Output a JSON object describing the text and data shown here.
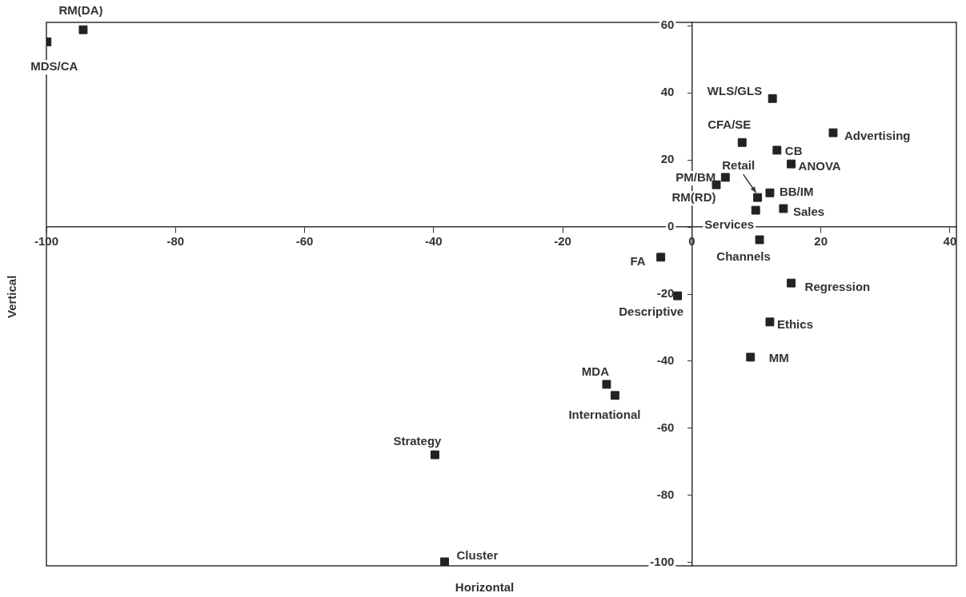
{
  "chart_data": {
    "type": "scatter",
    "xlabel": "Horizontal",
    "ylabel": "Vertical",
    "x": [
      -94.3,
      -99.9,
      12.5,
      21.9,
      7.8,
      13.2,
      15.4,
      5.2,
      3.8,
      10.2,
      12.1,
      9.9,
      14.2,
      10.5,
      -4.8,
      -2.2,
      15.4,
      12.1,
      9.1,
      -13.2,
      -11.9,
      -39.8,
      -38.3
    ],
    "values": [
      58.8,
      55.2,
      38.3,
      28.1,
      25.2,
      22.9,
      18.8,
      14.8,
      12.6,
      8.8,
      10.2,
      5.0,
      5.5,
      -3.8,
      -9.0,
      -20.5,
      -16.7,
      -28.3,
      -38.8,
      -46.9,
      -50.2,
      -67.9,
      -99.8
    ],
    "color": "#222222",
    "marker": "square",
    "xlim": [
      -100,
      41
    ],
    "ylim": [
      -101,
      61
    ],
    "xticks": [
      -100,
      -80,
      -60,
      -40,
      -20,
      0,
      20,
      40
    ],
    "yticks": [
      -100,
      -80,
      -60,
      -40,
      -20,
      0,
      20,
      40,
      60
    ],
    "grid": false,
    "legend": false,
    "annotations": [
      {
        "text": "RM(DA)",
        "x": -94.3,
        "y": 58.8
      },
      {
        "text": "MDS/CA",
        "x": -99.9,
        "y": 55.2
      },
      {
        "text": "WLS/GLS",
        "x": 12.5,
        "y": 38.3
      },
      {
        "text": "Advertising",
        "x": 21.9,
        "y": 28.1
      },
      {
        "text": "CFA/SE",
        "x": 7.8,
        "y": 25.2
      },
      {
        "text": "CB",
        "x": 13.2,
        "y": 22.9
      },
      {
        "text": "ANOVA",
        "x": 15.4,
        "y": 18.8
      },
      {
        "text": "PM/BM",
        "x": 5.2,
        "y": 14.8
      },
      {
        "text": "RM(RD)",
        "x": 3.8,
        "y": 12.6
      },
      {
        "text": "Retail",
        "x": 10.2,
        "y": 8.8
      },
      {
        "text": "BB/IM",
        "x": 12.1,
        "y": 10.2
      },
      {
        "text": "Services",
        "x": 9.9,
        "y": 5.0
      },
      {
        "text": "Sales",
        "x": 14.2,
        "y": 5.5
      },
      {
        "text": "Channels",
        "x": 10.5,
        "y": -3.8
      },
      {
        "text": "FA",
        "x": -4.8,
        "y": -9.0
      },
      {
        "text": "Descriptive",
        "x": -2.2,
        "y": -20.5
      },
      {
        "text": "Regression",
        "x": 15.4,
        "y": -16.7
      },
      {
        "text": "Ethics",
        "x": 12.1,
        "y": -28.3
      },
      {
        "text": "MM",
        "x": 9.1,
        "y": -38.8
      },
      {
        "text": "MDA",
        "x": -13.2,
        "y": -46.9
      },
      {
        "text": "International",
        "x": -11.9,
        "y": -50.2
      },
      {
        "text": "Strategy",
        "x": -39.8,
        "y": -67.9
      },
      {
        "text": "Cluster",
        "x": -38.3,
        "y": -99.8
      }
    ]
  }
}
